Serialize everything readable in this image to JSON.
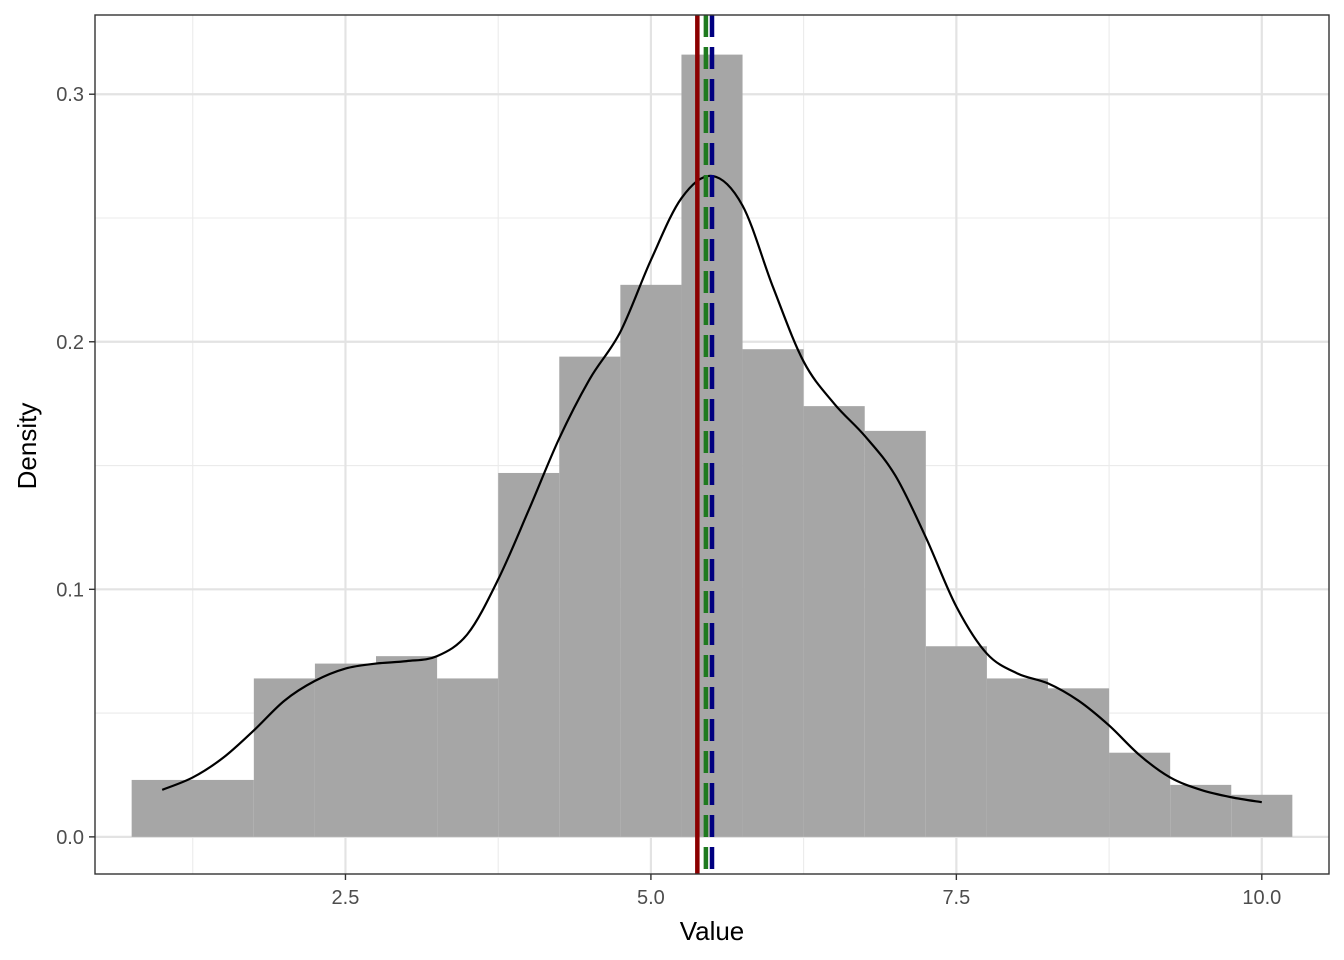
{
  "chart_data": {
    "type": "bar",
    "title": "",
    "xlabel": "Value",
    "ylabel": "Density",
    "xlim": [
      0.45,
      10.55
    ],
    "ylim": [
      -0.015,
      0.332
    ],
    "x_ticks": [
      2.5,
      5.0,
      7.5,
      10.0
    ],
    "x_tick_labels": [
      "2.5",
      "5.0",
      "7.5",
      "10.0"
    ],
    "x_minor_ticks": [
      1.25,
      3.75,
      6.25,
      8.75
    ],
    "y_ticks": [
      0.0,
      0.1,
      0.2,
      0.3
    ],
    "y_tick_labels": [
      "0.0",
      "0.1",
      "0.2",
      "0.3"
    ],
    "y_minor_ticks": [
      0.05,
      0.15,
      0.25
    ],
    "grid": true,
    "histogram": {
      "fill": "#a6a6a6",
      "bins": [
        {
          "x0": 0.75,
          "x1": 1.75,
          "density": 0.023
        },
        {
          "x0": 1.75,
          "x1": 2.25,
          "density": 0.064
        },
        {
          "x0": 2.25,
          "x1": 2.75,
          "density": 0.07
        },
        {
          "x0": 2.75,
          "x1": 3.25,
          "density": 0.073
        },
        {
          "x0": 3.25,
          "x1": 3.75,
          "density": 0.064
        },
        {
          "x0": 3.75,
          "x1": 4.25,
          "density": 0.147
        },
        {
          "x0": 4.25,
          "x1": 4.75,
          "density": 0.194
        },
        {
          "x0": 4.75,
          "x1": 5.25,
          "density": 0.223
        },
        {
          "x0": 5.25,
          "x1": 5.75,
          "density": 0.316
        },
        {
          "x0": 5.75,
          "x1": 6.25,
          "density": 0.197
        },
        {
          "x0": 6.25,
          "x1": 6.75,
          "density": 0.174
        },
        {
          "x0": 6.75,
          "x1": 7.25,
          "density": 0.164
        },
        {
          "x0": 7.25,
          "x1": 7.75,
          "density": 0.077
        },
        {
          "x0": 7.75,
          "x1": 8.25,
          "density": 0.064
        },
        {
          "x0": 8.25,
          "x1": 8.75,
          "density": 0.06
        },
        {
          "x0": 8.75,
          "x1": 9.25,
          "density": 0.034
        },
        {
          "x0": 9.25,
          "x1": 9.75,
          "density": 0.021
        },
        {
          "x0": 9.75,
          "x1": 10.25,
          "density": 0.017
        }
      ]
    },
    "density_curve": {
      "color": "#000000",
      "points": [
        [
          1.0,
          0.019
        ],
        [
          1.25,
          0.024
        ],
        [
          1.5,
          0.032
        ],
        [
          1.75,
          0.043
        ],
        [
          2.0,
          0.055
        ],
        [
          2.25,
          0.063
        ],
        [
          2.5,
          0.068
        ],
        [
          2.75,
          0.07
        ],
        [
          3.0,
          0.071
        ],
        [
          3.25,
          0.073
        ],
        [
          3.5,
          0.082
        ],
        [
          3.75,
          0.104
        ],
        [
          4.0,
          0.132
        ],
        [
          4.25,
          0.161
        ],
        [
          4.5,
          0.185
        ],
        [
          4.75,
          0.204
        ],
        [
          5.0,
          0.233
        ],
        [
          5.25,
          0.258
        ],
        [
          5.5,
          0.267
        ],
        [
          5.75,
          0.255
        ],
        [
          6.0,
          0.222
        ],
        [
          6.25,
          0.192
        ],
        [
          6.5,
          0.175
        ],
        [
          6.75,
          0.162
        ],
        [
          7.0,
          0.146
        ],
        [
          7.25,
          0.121
        ],
        [
          7.5,
          0.093
        ],
        [
          7.75,
          0.074
        ],
        [
          8.0,
          0.066
        ],
        [
          8.25,
          0.062
        ],
        [
          8.5,
          0.055
        ],
        [
          8.75,
          0.045
        ],
        [
          9.0,
          0.033
        ],
        [
          9.25,
          0.024
        ],
        [
          9.5,
          0.019
        ],
        [
          9.75,
          0.016
        ],
        [
          10.0,
          0.014
        ]
      ]
    },
    "reference_lines": [
      {
        "x": 5.38,
        "color": "#8b0000",
        "style": "solid"
      },
      {
        "x": 5.45,
        "color": "#1f7a1f",
        "style": "dashed"
      },
      {
        "x": 5.5,
        "color": "#000080",
        "style": "dashed"
      }
    ]
  }
}
